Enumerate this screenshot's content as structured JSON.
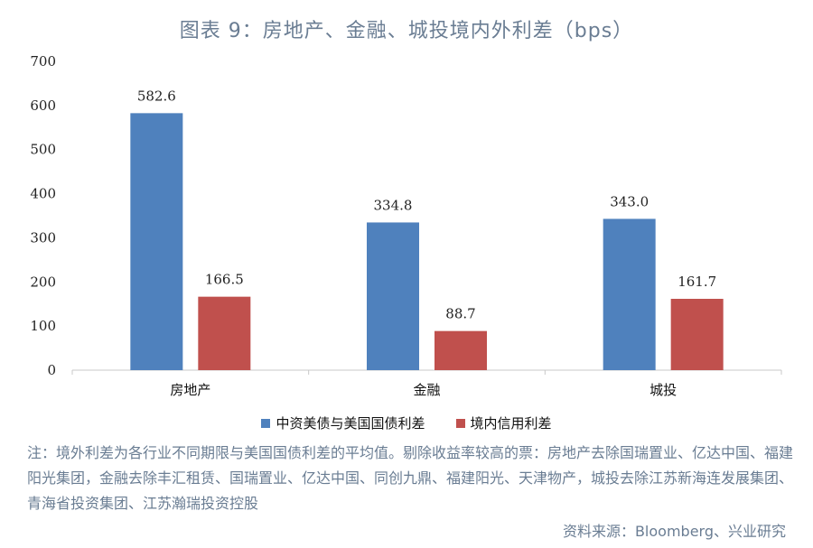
{
  "title": "图表 9：房地产、金融、城投境内外利差（bps）",
  "chart_data": {
    "type": "bar",
    "categories": [
      "房地产",
      "金融",
      "城投"
    ],
    "series": [
      {
        "name": "中资美债与美国国债利差",
        "values": [
          582.6,
          334.8,
          343.0
        ],
        "color": "#4f81bd"
      },
      {
        "name": "境内信用利差",
        "values": [
          166.5,
          88.7,
          161.7
        ],
        "color": "#c0504d"
      }
    ],
    "value_labels": [
      [
        "582.6",
        "334.8",
        "343.0"
      ],
      [
        "166.5",
        "88.7",
        "161.7"
      ]
    ],
    "ylim": [
      0,
      700
    ],
    "yticks": [
      0,
      100,
      200,
      300,
      400,
      500,
      600,
      700
    ],
    "legend_position": "bottom",
    "grid": false
  },
  "note": "注：境外利差为各行业不同期限与美国国债利差的平均值。剔除收益率较高的票：房地产去除国瑞置业、亿达中国、福建阳光集团，金融去除丰汇租赁、国瑞置业、亿达中国、同创九鼎、福建阳光、天津物产，城投去除江苏新海连发展集团、青海省投资集团、江苏瀚瑞投资控股",
  "source": "资料来源：Bloomberg、兴业研究"
}
